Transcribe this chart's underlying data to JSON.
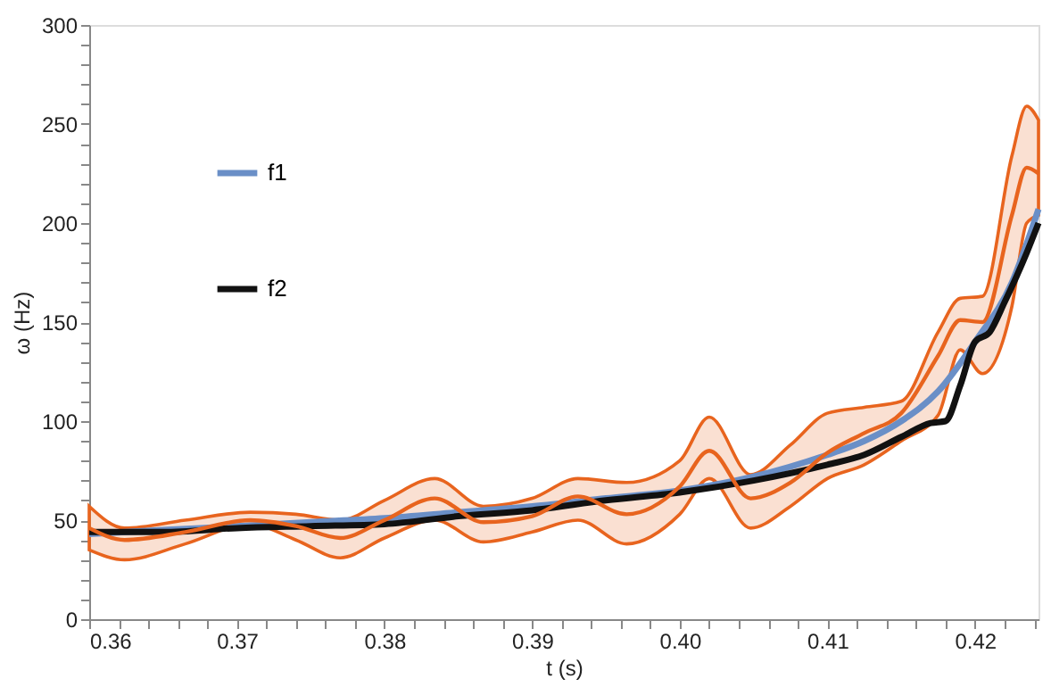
{
  "chart_data": {
    "type": "line",
    "xlabel": "t (s)",
    "ylabel": "ω (Hz)",
    "xlim": [
      0.36,
      0.4243
    ],
    "ylim": [
      0,
      300
    ],
    "xticks": [
      0.36,
      {
        "value": 0.362,
        "label": null
      },
      {
        "value": 0.364,
        "label": null
      },
      {
        "value": 0.366,
        "label": null
      },
      {
        "value": 0.368,
        "label": null
      },
      0.37,
      {
        "value": 0.372,
        "label": null
      },
      {
        "value": 0.374,
        "label": null
      },
      {
        "value": 0.376,
        "label": null
      },
      {
        "value": 0.378,
        "label": null
      },
      0.38,
      {
        "value": 0.382,
        "label": null
      },
      {
        "value": 0.384,
        "label": null
      },
      {
        "value": 0.386,
        "label": null
      },
      {
        "value": 0.388,
        "label": null
      },
      0.39,
      {
        "value": 0.392,
        "label": null
      },
      {
        "value": 0.394,
        "label": null
      },
      {
        "value": 0.396,
        "label": null
      },
      {
        "value": 0.398,
        "label": null
      },
      {
        "value": 0.4,
        "label": "0.40"
      },
      {
        "value": 0.402,
        "label": null
      },
      {
        "value": 0.404,
        "label": null
      },
      {
        "value": 0.406,
        "label": null
      },
      {
        "value": 0.408,
        "label": null
      },
      0.41,
      {
        "value": 0.412,
        "label": null
      },
      {
        "value": 0.414,
        "label": null
      },
      {
        "value": 0.416,
        "label": null
      },
      {
        "value": 0.418,
        "label": null
      },
      0.42,
      {
        "value": 0.422,
        "label": null
      },
      {
        "value": 0.424,
        "label": null
      }
    ],
    "yticks": [
      0,
      {
        "value": 10,
        "label": null
      },
      {
        "value": 20,
        "label": null
      },
      {
        "value": 30,
        "label": null
      },
      {
        "value": 40,
        "label": null
      },
      50,
      {
        "value": 60,
        "label": null
      },
      {
        "value": 70,
        "label": null
      },
      {
        "value": 80,
        "label": null
      },
      {
        "value": 90,
        "label": null
      },
      100,
      {
        "value": 110,
        "label": null
      },
      {
        "value": 120,
        "label": null
      },
      {
        "value": 130,
        "label": null
      },
      {
        "value": 140,
        "label": null
      },
      150,
      {
        "value": 160,
        "label": null
      },
      {
        "value": 170,
        "label": null
      },
      {
        "value": 180,
        "label": null
      },
      {
        "value": 190,
        "label": null
      },
      200,
      {
        "value": 210,
        "label": null
      },
      {
        "value": 220,
        "label": null
      },
      {
        "value": 230,
        "label": null
      },
      {
        "value": 240,
        "label": null
      },
      250,
      {
        "value": 260,
        "label": null
      },
      {
        "value": 270,
        "label": null
      },
      {
        "value": 280,
        "label": null
      },
      {
        "value": 290,
        "label": null
      },
      300
    ],
    "grid": false,
    "legend": "top left",
    "marker": "none",
    "line_style": "solid",
    "series": [
      {
        "name": "f1",
        "color": "#6a8fc7",
        "x": [
          0.36,
          0.365,
          0.37,
          0.375,
          0.38,
          0.385,
          0.39,
          0.395,
          0.4,
          0.405,
          0.41,
          0.4125,
          0.415,
          0.4175,
          0.42,
          0.4225,
          0.4243
        ],
        "values": [
          43,
          45,
          47,
          49,
          51,
          54,
          57,
          61,
          65,
          72,
          83,
          90,
          100,
          115,
          140,
          170,
          207
        ]
      },
      {
        "name": "f2",
        "color": "#111111",
        "x": [
          0.36,
          0.365,
          0.37,
          0.375,
          0.38,
          0.385,
          0.39,
          0.395,
          0.4,
          0.405,
          0.41,
          0.4125,
          0.415,
          0.417,
          0.418,
          0.419,
          0.42,
          0.421,
          0.422,
          0.4235,
          0.4243
        ],
        "values": [
          44,
          44,
          46,
          47,
          48,
          52,
          55,
          60,
          64,
          70,
          78,
          83,
          92,
          99,
          100,
          118,
          140,
          145,
          160,
          185,
          200
        ]
      },
      {
        "color": "#e8641e",
        "x": [
          0.36,
          0.3624,
          0.3665,
          0.3709,
          0.374,
          0.377,
          0.38,
          0.3834,
          0.3867,
          0.39,
          0.3931,
          0.3964,
          0.4,
          0.402,
          0.4048,
          0.4075,
          0.41,
          0.4125,
          0.415,
          0.4175,
          0.419,
          0.4205,
          0.4225,
          0.4235,
          0.4243
        ],
        "values": [
          46,
          40,
          44,
          50,
          47,
          41,
          50,
          61,
          49,
          52,
          62,
          53,
          67,
          85,
          61,
          69,
          84,
          94,
          104,
          133,
          151,
          150,
          204,
          228,
          225
        ],
        "lower": [
          35,
          30,
          38,
          48,
          40,
          31,
          41,
          50,
          39,
          44,
          50,
          38,
          53,
          71,
          46,
          57,
          71,
          78,
          90,
          103,
          136,
          124,
          158,
          200,
          204
        ],
        "upper": [
          57,
          46,
          50,
          54,
          53,
          50,
          60,
          71,
          57,
          61,
          71,
          69,
          80,
          102,
          73,
          88,
          104,
          107,
          110,
          145,
          162,
          163,
          234,
          259,
          252
        ]
      }
    ]
  }
}
